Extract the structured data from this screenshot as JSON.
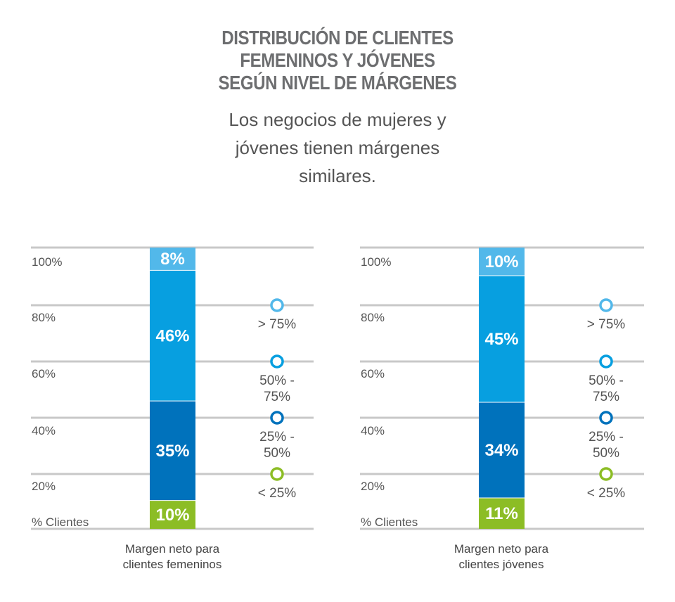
{
  "title_lines": [
    "DISTRIBUCIÓN DE CLIENTES",
    "FEMENINOS Y JÓVENES",
    "SEGÚN NIVEL DE MÁRGENES"
  ],
  "subtitle_lines": [
    "Los negocios de mujeres y",
    "jóvenes tienen márgenes",
    "similares."
  ],
  "colors": {
    "lt75": "#8cbd25",
    "25to50": "#0072bc",
    "50to75": "#079fe0",
    "gt75": "#52b8ea"
  },
  "chart_data": [
    {
      "type": "bar",
      "stacked": true,
      "ylabel": "% Clientes",
      "yticks": [
        "100%",
        "80%",
        "60%",
        "40%",
        "20%"
      ],
      "ylim": [
        0,
        100
      ],
      "grid": true,
      "xlabel_lines": [
        "Margen neto para",
        "clientes femeninos"
      ],
      "series": [
        {
          "name": "< 25%",
          "value": 10,
          "label": "10%"
        },
        {
          "name": "25% - 50%",
          "value": 35,
          "label": "35%"
        },
        {
          "name": "50% - 75%",
          "value": 46,
          "label": "46%"
        },
        {
          "name": "> 75%",
          "value": 8,
          "label": "8%"
        }
      ],
      "legend": [
        {
          "lines": [
            "> 75%"
          ],
          "color": "#52b8ea"
        },
        {
          "lines": [
            "50% -",
            "75%"
          ],
          "color": "#079fe0"
        },
        {
          "lines": [
            "25% -",
            "50%"
          ],
          "color": "#0072bc"
        },
        {
          "lines": [
            "< 25%"
          ],
          "color": "#8cbd25"
        }
      ]
    },
    {
      "type": "bar",
      "stacked": true,
      "ylabel": "% Clientes",
      "yticks": [
        "100%",
        "80%",
        "60%",
        "40%",
        "20%"
      ],
      "ylim": [
        0,
        100
      ],
      "grid": true,
      "xlabel_lines": [
        "Margen neto para",
        "clientes jóvenes"
      ],
      "series": [
        {
          "name": "< 25%",
          "value": 11,
          "label": "11%"
        },
        {
          "name": "25% - 50%",
          "value": 34,
          "label": "34%"
        },
        {
          "name": "50% - 75%",
          "value": 45,
          "label": "45%"
        },
        {
          "name": "> 75%",
          "value": 10,
          "label": "10%"
        }
      ],
      "legend": [
        {
          "lines": [
            "> 75%"
          ],
          "color": "#52b8ea"
        },
        {
          "lines": [
            "50% -",
            "75%"
          ],
          "color": "#079fe0"
        },
        {
          "lines": [
            "25% -",
            "50%"
          ],
          "color": "#0072bc"
        },
        {
          "lines": [
            "< 25%"
          ],
          "color": "#8cbd25"
        }
      ]
    }
  ]
}
